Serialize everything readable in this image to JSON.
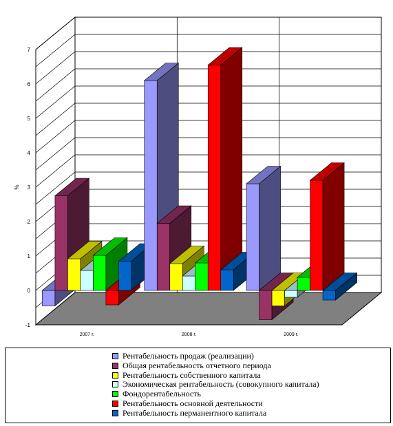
{
  "chart_data": {
    "type": "bar",
    "title": "",
    "xlabel": "",
    "ylabel": "%",
    "ylim": [
      -1,
      7
    ],
    "yticks": [
      "-1",
      "0",
      "1",
      "2",
      "3",
      "4",
      "5",
      "6",
      "7"
    ],
    "categories": [
      "2007 г.",
      "2008 г.",
      "2009 г."
    ],
    "grid": true,
    "three_d": true,
    "legend_position": "bottom",
    "series": [
      {
        "name": "Рентабельность продаж (реализации)",
        "color": "#9999ff",
        "values": [
          -0.45,
          6.1,
          3.1
        ]
      },
      {
        "name": "Общая рентабельность отчетного периода",
        "color": "#993366",
        "values": [
          2.75,
          1.95,
          -0.85
        ]
      },
      {
        "name": "Рентабельность собственного капитала",
        "color": "#ffff00",
        "values": [
          0.92,
          0.78,
          -0.45
        ]
      },
      {
        "name": "Экономическая рентабельность (совокупного капитала)",
        "color": "#ccffff",
        "values": [
          0.58,
          0.42,
          -0.2
        ]
      },
      {
        "name": "Фондорентабельность",
        "color": "#00ff00",
        "values": [
          1.02,
          0.8,
          0.38
        ]
      },
      {
        "name": "Рентабельность основной деятельности",
        "color": "#ff0000",
        "values": [
          -0.42,
          6.55,
          3.2
        ]
      },
      {
        "name": "Рентабельность перманентного капитала",
        "color": "#0066cc",
        "values": [
          0.85,
          0.6,
          -0.28
        ]
      }
    ]
  }
}
